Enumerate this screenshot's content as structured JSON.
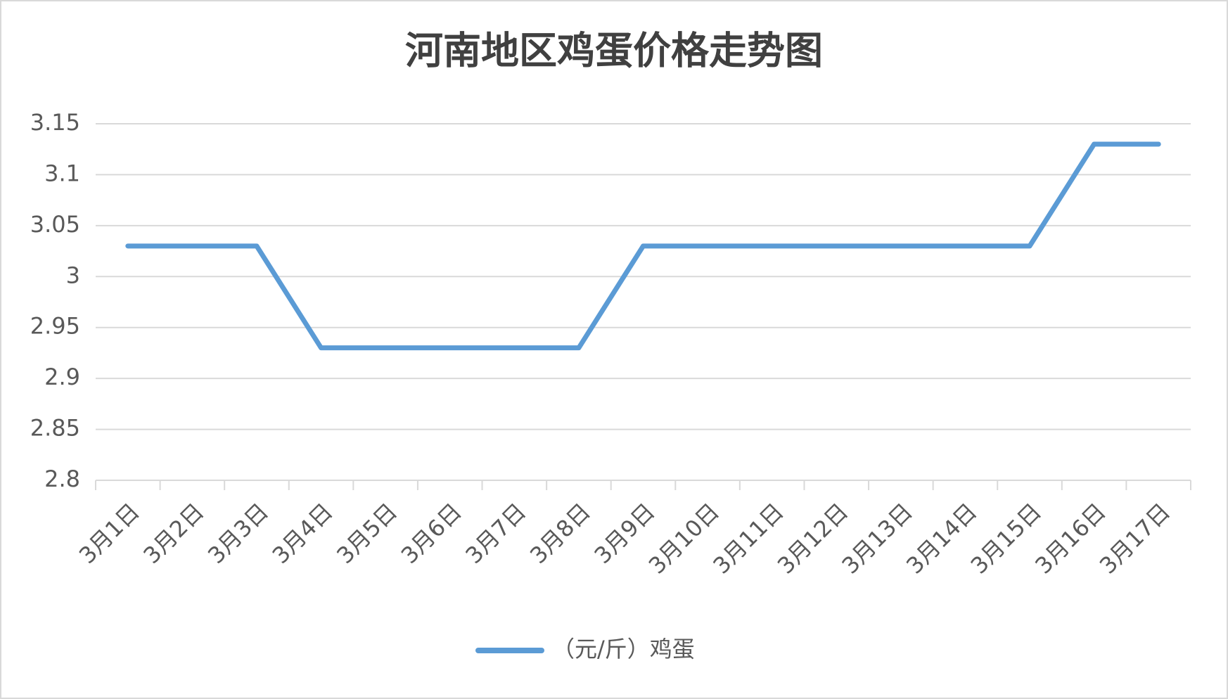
{
  "chart_data": {
    "type": "line",
    "title": "河南地区鸡蛋价格走势图",
    "categories": [
      "3月1日",
      "3月2日",
      "3月3日",
      "3月4日",
      "3月5日",
      "3月6日",
      "3月7日",
      "3月8日",
      "3月9日",
      "3月10日",
      "3月11日",
      "3月12日",
      "3月13日",
      "3月14日",
      "3月15日",
      "3月16日",
      "3月17日"
    ],
    "series": [
      {
        "name": "（元/斤）鸡蛋",
        "color": "#5b9bd5",
        "values": [
          3.03,
          3.03,
          3.03,
          2.93,
          2.93,
          2.93,
          2.93,
          2.93,
          3.03,
          3.03,
          3.03,
          3.03,
          3.03,
          3.03,
          3.03,
          3.13,
          3.13
        ]
      }
    ],
    "ylim": [
      2.8,
      3.15
    ],
    "yticks": [
      2.8,
      2.85,
      2.9,
      2.95,
      3,
      3.05,
      3.1,
      3.15
    ],
    "grid": true,
    "legend": "bottom"
  }
}
